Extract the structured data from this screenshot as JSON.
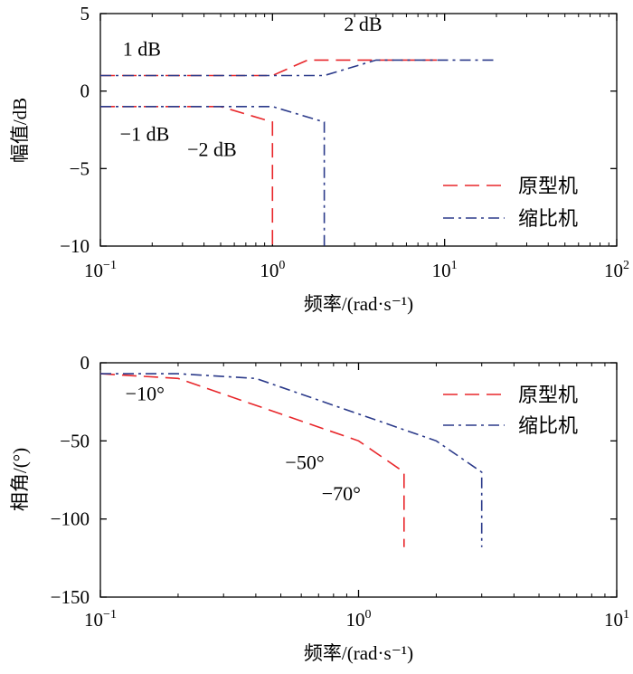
{
  "colors": {
    "prototype": "#e8262a",
    "scaled": "#2b3a8a",
    "axis": "#000000"
  },
  "chart_data": [
    {
      "type": "line",
      "name": "magnitude",
      "xscale": "log",
      "xlim": [
        0.1,
        100
      ],
      "ylim": [
        -10,
        5
      ],
      "xlabel": "频率/(rad·s⁻¹)",
      "ylabel": "幅值/dB",
      "x_ticks": [
        {
          "value": 0.1,
          "base": "10",
          "exp": "−1"
        },
        {
          "value": 1,
          "base": "10",
          "exp": "0"
        },
        {
          "value": 10,
          "base": "10",
          "exp": "1"
        },
        {
          "value": 100,
          "base": "10",
          "exp": "2"
        }
      ],
      "y_ticks": [
        {
          "value": 5,
          "label": "5"
        },
        {
          "value": 0,
          "label": "0"
        },
        {
          "value": -5,
          "label": "−5"
        },
        {
          "value": -10,
          "label": "−10"
        }
      ],
      "legend": {
        "position": "lower-right",
        "entries": [
          "原型机",
          "缩比机"
        ]
      },
      "series": [
        {
          "name": "原型机 upper",
          "style": "prototype",
          "points": [
            [
              0.1,
              1
            ],
            [
              1,
              1
            ],
            [
              1.6,
              2
            ],
            [
              9,
              2
            ]
          ]
        },
        {
          "name": "原型机 lower",
          "style": "prototype",
          "points": [
            [
              0.1,
              -1
            ],
            [
              0.5,
              -1
            ],
            [
              1,
              -2
            ],
            [
              1,
              -10
            ]
          ]
        },
        {
          "name": "缩比机 upper",
          "style": "scaled",
          "points": [
            [
              0.1,
              1
            ],
            [
              2,
              1
            ],
            [
              4,
              2
            ],
            [
              20,
              2
            ]
          ]
        },
        {
          "name": "缩比机 lower",
          "style": "scaled",
          "points": [
            [
              0.1,
              -1
            ],
            [
              1,
              -1
            ],
            [
              2,
              -2
            ],
            [
              2,
              -10
            ]
          ]
        }
      ],
      "annotations": [
        {
          "text": "2 dB",
          "x": 2.6,
          "y": 3.9
        },
        {
          "text": "1 dB",
          "x": 0.135,
          "y": 2.3
        },
        {
          "text": "−1 dB",
          "x": 0.13,
          "y": -3.2
        },
        {
          "text": "−2 dB",
          "x": 0.32,
          "y": -4.2
        }
      ]
    },
    {
      "type": "line",
      "name": "phase",
      "xscale": "log",
      "xlim": [
        0.1,
        10
      ],
      "ylim": [
        -150,
        0
      ],
      "xlabel": "频率/(rad·s⁻¹)",
      "ylabel": "相角/(°)",
      "x_ticks": [
        {
          "value": 0.1,
          "base": "10",
          "exp": "−1"
        },
        {
          "value": 1,
          "base": "10",
          "exp": "0"
        },
        {
          "value": 10,
          "base": "10",
          "exp": "1"
        }
      ],
      "y_ticks": [
        {
          "value": 0,
          "label": "0"
        },
        {
          "value": -50,
          "label": "−50"
        },
        {
          "value": -100,
          "label": "−100"
        },
        {
          "value": -150,
          "label": "−150"
        }
      ],
      "legend": {
        "position": "top-right",
        "entries": [
          "原型机",
          "缩比机"
        ]
      },
      "series": [
        {
          "name": "原型机",
          "style": "prototype",
          "points": [
            [
              0.1,
              -7
            ],
            [
              0.2,
              -10
            ],
            [
              1,
              -50
            ],
            [
              1.5,
              -70
            ],
            [
              1.5,
              -118
            ]
          ]
        },
        {
          "name": "缩比机",
          "style": "scaled",
          "points": [
            [
              0.1,
              -7
            ],
            [
              0.2,
              -7
            ],
            [
              0.4,
              -10
            ],
            [
              2,
              -50
            ],
            [
              3,
              -70
            ],
            [
              3,
              -118
            ]
          ]
        }
      ],
      "annotations": [
        {
          "text": "−10°",
          "x": 0.125,
          "y": -24
        },
        {
          "text": "−50°",
          "x": 0.52,
          "y": -68
        },
        {
          "text": "−70°",
          "x": 0.72,
          "y": -88
        }
      ]
    }
  ]
}
